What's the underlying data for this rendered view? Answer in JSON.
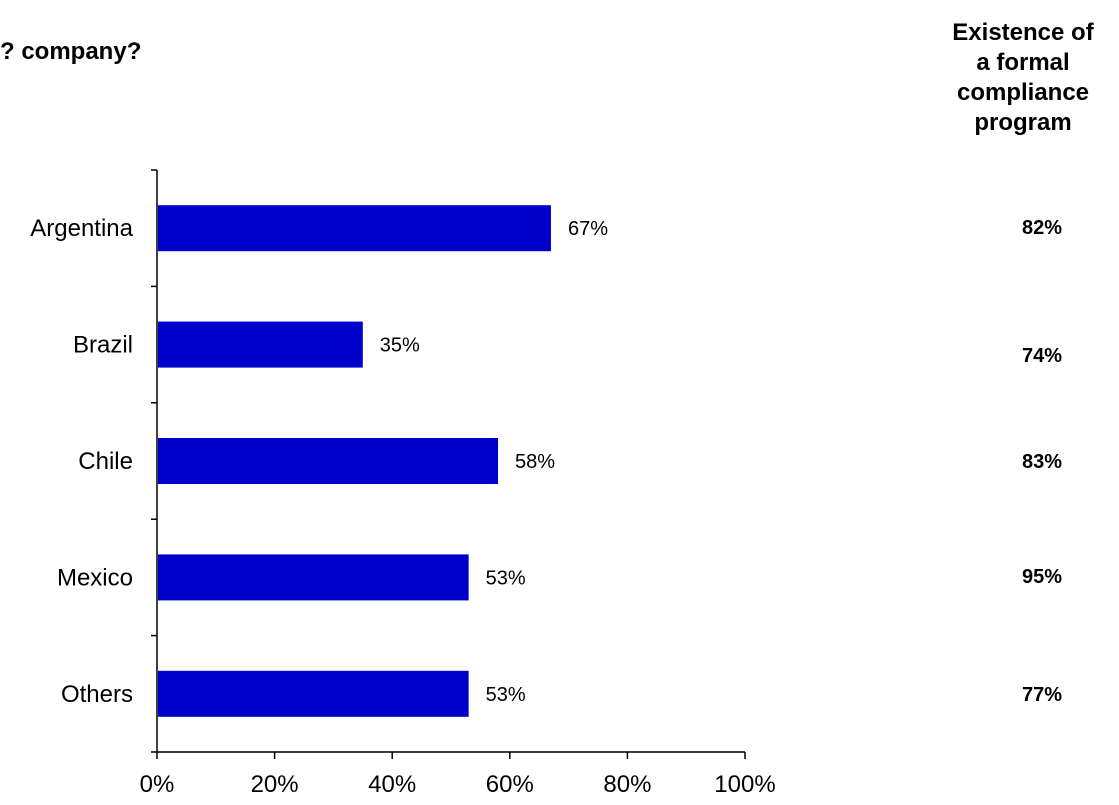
{
  "title": "? company?",
  "side_column": {
    "header_lines": [
      "Existence of",
      "a formal",
      "compliance",
      "program"
    ],
    "values": [
      "82%",
      "74%",
      "83%",
      "95%",
      "77%"
    ]
  },
  "colors": {
    "bar": "#0000CC",
    "axis": "#000000",
    "text": "#000000"
  },
  "chart_data": {
    "type": "bar",
    "orientation": "horizontal",
    "categories": [
      "Argentina",
      "Brazil",
      "Chile",
      "Mexico",
      "Others"
    ],
    "values": [
      67,
      35,
      58,
      53,
      53
    ],
    "value_labels": [
      "67%",
      "35%",
      "58%",
      "53%",
      "53%"
    ],
    "xlim": [
      0,
      100
    ],
    "xticks": [
      0,
      20,
      40,
      60,
      80,
      100
    ],
    "xtick_labels": [
      "0%",
      "20%",
      "40%",
      "60%",
      "80%",
      "100%"
    ],
    "grid": false,
    "legend": "none"
  }
}
